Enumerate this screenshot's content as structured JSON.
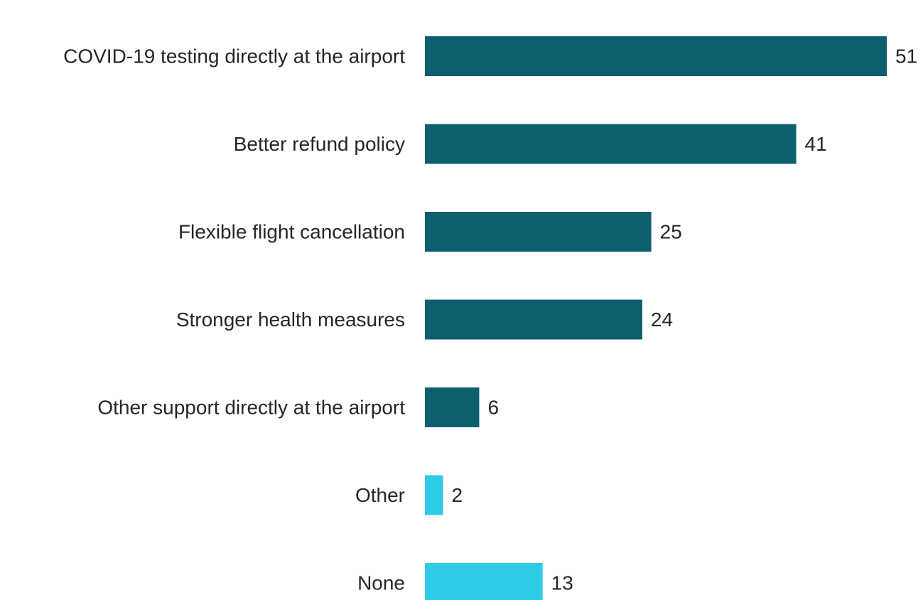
{
  "chart_data": {
    "type": "bar",
    "orientation": "horizontal",
    "title": "",
    "xlabel": "",
    "ylabel": "",
    "xlim": [
      0,
      51
    ],
    "grid": false,
    "legend": "none",
    "categories": [
      "COVID-19 testing directly at the airport",
      "Better refund policy",
      "Flexible flight cancellation",
      "Stronger health measures",
      "Other support directly at the airport",
      "Other",
      "None"
    ],
    "values": [
      51,
      41,
      25,
      24,
      6,
      2,
      13
    ],
    "value_labels": [
      "51",
      "41",
      "25",
      "24",
      "6",
      "2",
      "13"
    ],
    "bar_colors": [
      "#0c5f6f",
      "#0c5f6f",
      "#0c5f6f",
      "#0c5f6f",
      "#0c5f6f",
      "#2ecbe8",
      "#2ecbe8"
    ]
  }
}
